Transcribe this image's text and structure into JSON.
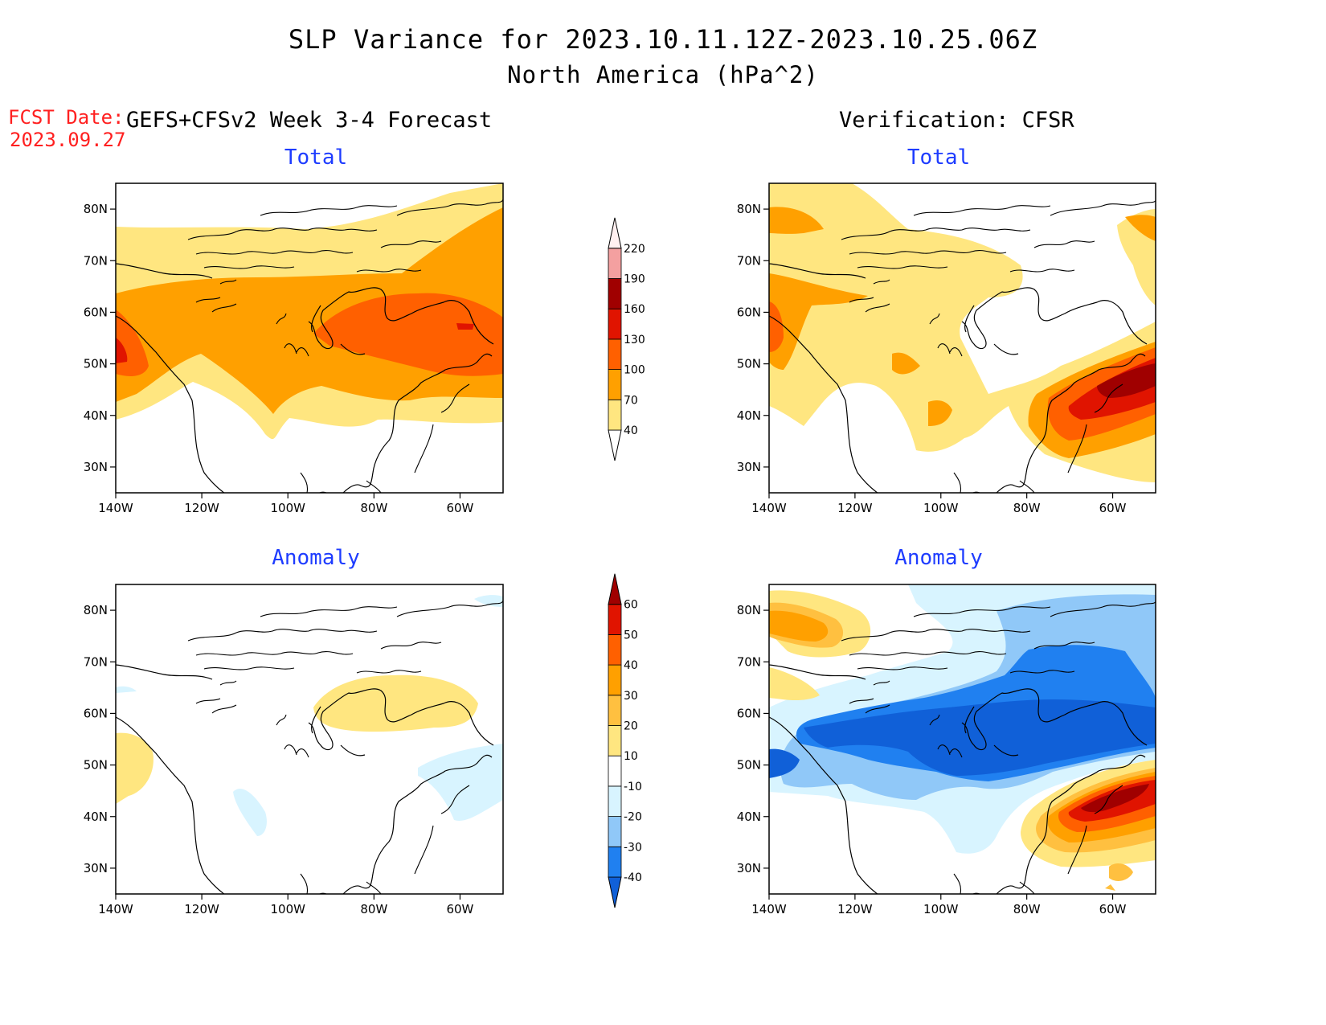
{
  "title": {
    "line1": "SLP Variance for 2023.10.11.12Z-2023.10.25.06Z",
    "line2": "North America (hPa^2)"
  },
  "forecast": {
    "date_label": "FCST Date:",
    "date_value": "2023.09.27",
    "header": "GEFS+CFSv2 Week 3-4 Forecast"
  },
  "verification": {
    "header": "Verification: CFSR"
  },
  "panels": {
    "fcst_total": {
      "subtitle": "Total"
    },
    "verif_total": {
      "subtitle": "Total"
    },
    "fcst_anom": {
      "subtitle": "Anomaly"
    },
    "verif_anom": {
      "subtitle": "Anomaly"
    }
  },
  "axes": {
    "lat_labels": [
      "80N",
      "70N",
      "60N",
      "50N",
      "40N",
      "30N"
    ],
    "lat_values": [
      80,
      70,
      60,
      50,
      40,
      30
    ],
    "lon_labels": [
      "140W",
      "120W",
      "100W",
      "80W",
      "60W"
    ],
    "lon_values": [
      -140,
      -120,
      -100,
      -80,
      -60
    ],
    "lon_range": [
      -140,
      -50
    ],
    "lat_range": [
      25,
      85
    ]
  },
  "colorbars": {
    "total": {
      "levels": [
        "40",
        "70",
        "100",
        "130",
        "160",
        "190",
        "220"
      ],
      "colors": [
        "#ffe680",
        "#ffa000",
        "#ff6000",
        "#e01400",
        "#a00000",
        "#f4a0a0",
        "#fff0f0"
      ]
    },
    "anomaly": {
      "levels": [
        "-40",
        "-30",
        "-20",
        "-10",
        "10",
        "20",
        "30",
        "40",
        "50",
        "60"
      ],
      "colors": [
        "#1060d8",
        "#2080f0",
        "#90c8f8",
        "#d8f4ff",
        "#ffffff",
        "#ffe680",
        "#ffc040",
        "#ffa000",
        "#ff6000",
        "#e01400",
        "#a00000"
      ]
    }
  },
  "colors": {
    "subtitle": "#1e3cff",
    "fcst_date": "#ff2020"
  }
}
